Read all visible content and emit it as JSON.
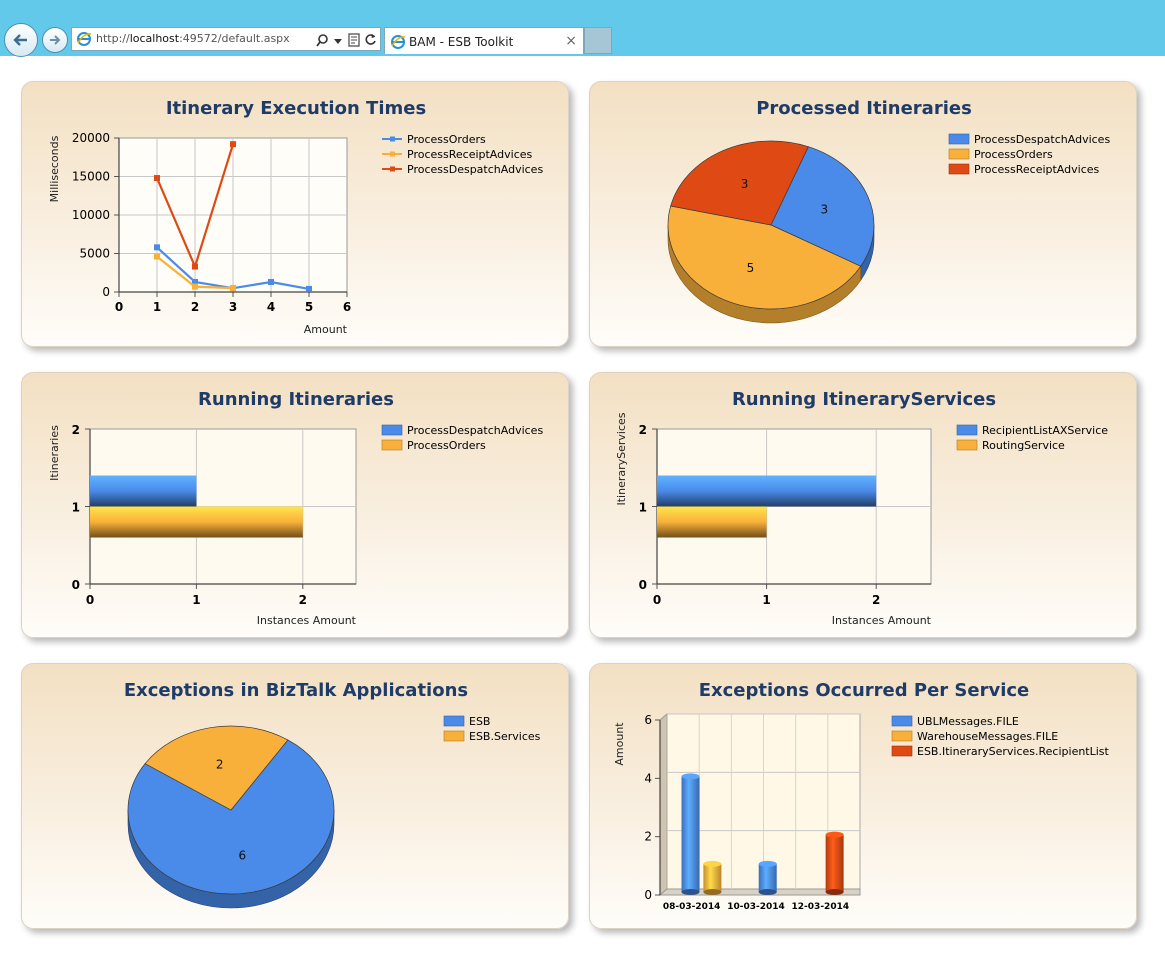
{
  "browser": {
    "url_prefix": "http://",
    "url_host": "localhost",
    "url_rest": ":49572/default.aspx",
    "tab_title": "BAM - ESB Toolkit",
    "tab_close": "×",
    "icons": [
      "back-arrow-icon",
      "forward-arrow-icon",
      "ie-page-icon",
      "search-icon",
      "dropdown-icon",
      "compatibility-icon",
      "refresh-icon",
      "close-icon"
    ]
  },
  "colors": {
    "blue": "#4a8ae8",
    "orange": "#f9b03a",
    "red": "#df4a14",
    "title": "#1f3b68"
  },
  "panels": {
    "p1": {
      "title": "Itinerary Execution Times"
    },
    "p2": {
      "title": "Processed Itineraries"
    },
    "p3": {
      "title": "Running Itineraries"
    },
    "p4": {
      "title": "Running ItineraryServices"
    },
    "p5": {
      "title": "Exceptions in BizTalk Applications"
    },
    "p6": {
      "title": "Exceptions Occurred Per Service"
    }
  },
  "chart_data": [
    {
      "type": "line",
      "title": "Itinerary Execution Times",
      "xlabel": "Amount",
      "ylabel": "Milliseconds",
      "xlim": [
        0,
        6
      ],
      "ylim": [
        0,
        20000
      ],
      "xticks": [
        "0",
        "1",
        "2",
        "3",
        "4",
        "5",
        "6"
      ],
      "yticks": [
        "0",
        "5000",
        "10000",
        "15000",
        "20000"
      ],
      "grid": true,
      "legend": "right",
      "series": [
        {
          "name": "ProcessOrders",
          "color": "#4a8ae8",
          "x": [
            1,
            2,
            3,
            4,
            5
          ],
          "y": [
            5800,
            1300,
            500,
            1300,
            400
          ]
        },
        {
          "name": "ProcessReceiptAdvices",
          "color": "#f9b03a",
          "x": [
            1,
            2,
            3
          ],
          "y": [
            4600,
            700,
            500
          ]
        },
        {
          "name": "ProcessDespatchAdvices",
          "color": "#df4a14",
          "x": [
            1,
            2,
            3
          ],
          "y": [
            14800,
            3300,
            19200
          ]
        }
      ]
    },
    {
      "type": "pie",
      "title": "Processed Itineraries",
      "legend": "right",
      "slices": [
        {
          "name": "ProcessDespatchAdvices",
          "value": 3,
          "label": "3",
          "color": "#4a8ae8"
        },
        {
          "name": "ProcessOrders",
          "value": 5,
          "label": "5",
          "color": "#f9b03a"
        },
        {
          "name": "ProcessReceiptAdvices",
          "value": 3,
          "label": "3",
          "color": "#df4a14"
        }
      ]
    },
    {
      "type": "bar",
      "orientation": "horizontal",
      "title": "Running Itineraries",
      "xlabel": "Instances Amount",
      "ylabel": "Itineraries",
      "xlim": [
        0,
        2.5
      ],
      "ylim": [
        0,
        2
      ],
      "xticks": [
        "0",
        "1",
        "2"
      ],
      "yticks": [
        "0",
        "1",
        "2"
      ],
      "legend": "right",
      "series": [
        {
          "name": "ProcessDespatchAdvices",
          "color": "#4a8ae8",
          "values": [
            1
          ]
        },
        {
          "name": "ProcessOrders",
          "color": "#f9b03a",
          "values": [
            2
          ]
        }
      ]
    },
    {
      "type": "bar",
      "orientation": "horizontal",
      "title": "Running ItineraryServices",
      "xlabel": "Instances Amount",
      "ylabel": "ItineraryServices",
      "xlim": [
        0,
        2.5
      ],
      "ylim": [
        0,
        2
      ],
      "xticks": [
        "0",
        "1",
        "2"
      ],
      "yticks": [
        "0",
        "1",
        "2"
      ],
      "legend": "right",
      "series": [
        {
          "name": "RecipientListAXService",
          "color": "#4a8ae8",
          "values": [
            2
          ]
        },
        {
          "name": "RoutingService",
          "color": "#f9b03a",
          "values": [
            1
          ]
        }
      ]
    },
    {
      "type": "pie",
      "title": "Exceptions in BizTalk Applications",
      "legend": "right",
      "slices": [
        {
          "name": "ESB",
          "value": 6,
          "label": "6",
          "color": "#4a8ae8"
        },
        {
          "name": "ESB.Services",
          "value": 2,
          "label": "2",
          "color": "#f9b03a"
        }
      ]
    },
    {
      "type": "bar",
      "title": "Exceptions Occurred Per Service",
      "ylabel": "Amount",
      "ylim": [
        0,
        6
      ],
      "yticks": [
        "0",
        "2",
        "4",
        "6"
      ],
      "categories": [
        "08-03-2014",
        "10-03-2014",
        "12-03-2014"
      ],
      "legend": "right",
      "series": [
        {
          "name": "UBLMessages.FILE",
          "color": "#4a8ae8",
          "values": [
            4,
            1,
            0
          ]
        },
        {
          "name": "WarehouseMessages.FILE",
          "color": "#f9b03a",
          "values": [
            1,
            0,
            0
          ]
        },
        {
          "name": "ESB.ItineraryServices.RecipientList",
          "color": "#df4a14",
          "values": [
            0,
            0,
            2
          ]
        }
      ]
    }
  ]
}
